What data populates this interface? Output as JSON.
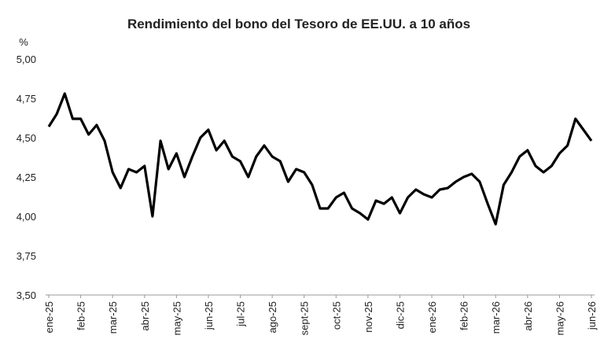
{
  "chart_data": {
    "type": "line",
    "title": "Rendimiento del bono del Tesoro de EE.UU. a 10 años",
    "y_label": "%",
    "xtick_labels": [
      "ene-25",
      "feb-25",
      "mar-25",
      "abr-25",
      "may-25",
      "jun-25",
      "jul-25",
      "ago-25",
      "sept-25",
      "oct-25",
      "nov-25",
      "dic-25",
      "ene-26",
      "feb-26",
      "mar-26",
      "abr-26",
      "may-26",
      "jun-26"
    ],
    "values": [
      4.57,
      4.65,
      4.78,
      4.62,
      4.62,
      4.52,
      4.58,
      4.48,
      4.28,
      4.18,
      4.3,
      4.28,
      4.32,
      4.0,
      4.48,
      4.3,
      4.4,
      4.25,
      4.38,
      4.5,
      4.55,
      4.42,
      4.48,
      4.38,
      4.35,
      4.25,
      4.38,
      4.45,
      4.38,
      4.35,
      4.22,
      4.3,
      4.28,
      4.2,
      4.05,
      4.05,
      4.12,
      4.15,
      4.05,
      4.02,
      3.98,
      4.1,
      4.08,
      4.12,
      4.02,
      4.12,
      4.17,
      4.14,
      4.12,
      4.17,
      4.18,
      4.22,
      4.25,
      4.27,
      4.22,
      4.08,
      3.95,
      4.2,
      4.28,
      4.38,
      4.42,
      4.32,
      4.28,
      4.32,
      4.4,
      4.45,
      4.62,
      4.55,
      4.48
    ],
    "color": "#000000",
    "ylim": [
      3.5,
      5.0
    ],
    "yticks": [
      {
        "value": 3.5,
        "label": "3,50"
      },
      {
        "value": 3.75,
        "label": "3,75"
      },
      {
        "value": 4.0,
        "label": "4,00"
      },
      {
        "value": 4.25,
        "label": "4,25"
      },
      {
        "value": 4.5,
        "label": "4,50"
      },
      {
        "value": 4.75,
        "label": "4,75"
      },
      {
        "value": 5.0,
        "label": "5,00"
      }
    ],
    "grid": false
  }
}
